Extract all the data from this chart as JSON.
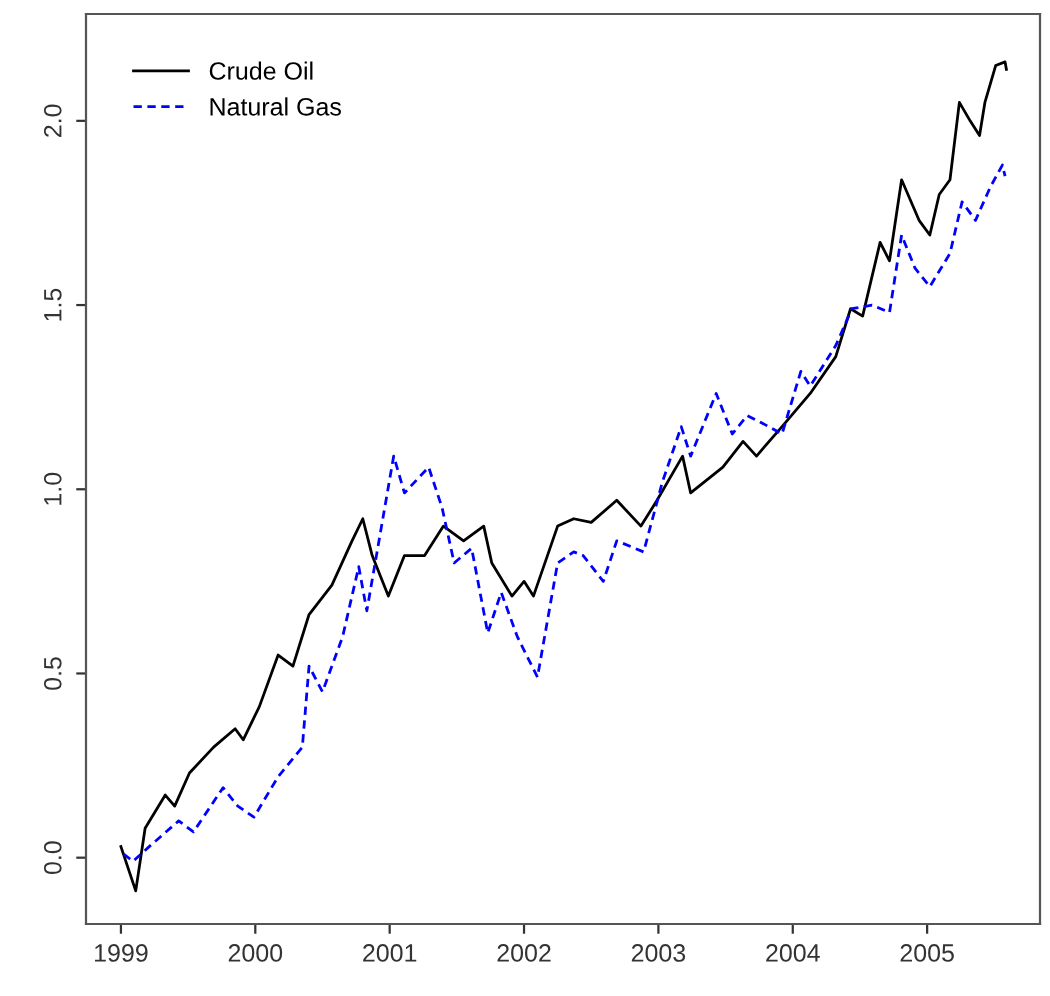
{
  "chart_data": {
    "type": "line",
    "legend": "top left",
    "grid": false,
    "xlim": [
      1998.74,
      2005.84
    ],
    "ylim": [
      -0.18,
      2.29
    ],
    "xticks": [
      1999,
      2000,
      2001,
      2002,
      2003,
      2004,
      2005
    ],
    "yticks": [
      {
        "value": 0,
        "label": "0.0"
      },
      {
        "value": 0.5,
        "label": "0.5"
      },
      {
        "value": 1,
        "label": "1.0"
      },
      {
        "value": 1.5,
        "label": "1.5"
      },
      {
        "value": 2,
        "label": "2.0"
      }
    ],
    "series": [
      {
        "name": "Crude Oil",
        "color": "#000000",
        "line_style": "solid",
        "x": [
          1999.0,
          1999.11,
          1999.18,
          1999.33,
          1999.4,
          1999.51,
          1999.69,
          1999.85,
          1999.91,
          2000.03,
          2000.17,
          2000.28,
          2000.4,
          2000.57,
          2000.72,
          2000.8,
          2000.87,
          2000.99,
          2001.11,
          2001.26,
          2001.4,
          2001.55,
          2001.7,
          2001.76,
          2001.91,
          2002.0,
          2002.07,
          2002.25,
          2002.37,
          2002.5,
          2002.69,
          2002.87,
          2002.99,
          2003.18,
          2003.24,
          2003.48,
          2003.63,
          2003.73,
          2003.92,
          2004.13,
          2004.32,
          2004.43,
          2004.52,
          2004.65,
          2004.72,
          2004.81,
          2004.94,
          2005.02,
          2005.09,
          2005.17,
          2005.24,
          2005.32,
          2005.39,
          2005.43,
          2005.51,
          2005.58,
          2005.59
        ],
        "values": [
          0.03,
          -0.09,
          0.08,
          0.17,
          0.14,
          0.23,
          0.3,
          0.35,
          0.32,
          0.41,
          0.55,
          0.52,
          0.66,
          0.74,
          0.86,
          0.92,
          0.82,
          0.71,
          0.82,
          0.82,
          0.9,
          0.86,
          0.9,
          0.8,
          0.71,
          0.75,
          0.71,
          0.9,
          0.92,
          0.91,
          0.97,
          0.9,
          0.97,
          1.09,
          0.99,
          1.06,
          1.13,
          1.09,
          1.17,
          1.26,
          1.36,
          1.49,
          1.47,
          1.67,
          1.62,
          1.84,
          1.73,
          1.69,
          1.8,
          1.84,
          2.05,
          2.0,
          1.96,
          2.05,
          2.15,
          2.16,
          2.14
        ]
      },
      {
        "name": "Natural Gas",
        "color": "#0000ff",
        "line_style": "dashed",
        "x": [
          1999.02,
          1999.09,
          1999.21,
          1999.43,
          1999.54,
          1999.76,
          1999.87,
          1999.99,
          2000.17,
          2000.35,
          2000.4,
          2000.5,
          2000.65,
          2000.77,
          2000.83,
          2001.03,
          2001.11,
          2001.29,
          2001.39,
          2001.48,
          2001.61,
          2001.73,
          2001.83,
          2001.95,
          2002.1,
          2002.25,
          2002.37,
          2002.44,
          2002.59,
          2002.69,
          2002.89,
          2003.03,
          2003.17,
          2003.24,
          2003.43,
          2003.55,
          2003.66,
          2003.77,
          2003.92,
          2004.06,
          2004.13,
          2004.32,
          2004.44,
          2004.59,
          2004.72,
          2004.81,
          2004.91,
          2005.02,
          2005.17,
          2005.26,
          2005.36,
          2005.47,
          2005.56,
          2005.58
        ],
        "values": [
          0.01,
          -0.01,
          0.03,
          0.1,
          0.07,
          0.19,
          0.14,
          0.11,
          0.22,
          0.3,
          0.52,
          0.45,
          0.6,
          0.79,
          0.67,
          1.09,
          0.99,
          1.06,
          0.95,
          0.8,
          0.84,
          0.61,
          0.72,
          0.6,
          0.49,
          0.8,
          0.83,
          0.82,
          0.75,
          0.86,
          0.83,
          1.02,
          1.17,
          1.09,
          1.26,
          1.15,
          1.2,
          1.18,
          1.15,
          1.32,
          1.28,
          1.39,
          1.49,
          1.5,
          1.48,
          1.69,
          1.6,
          1.55,
          1.64,
          1.78,
          1.73,
          1.82,
          1.88,
          1.85
        ]
      }
    ]
  }
}
